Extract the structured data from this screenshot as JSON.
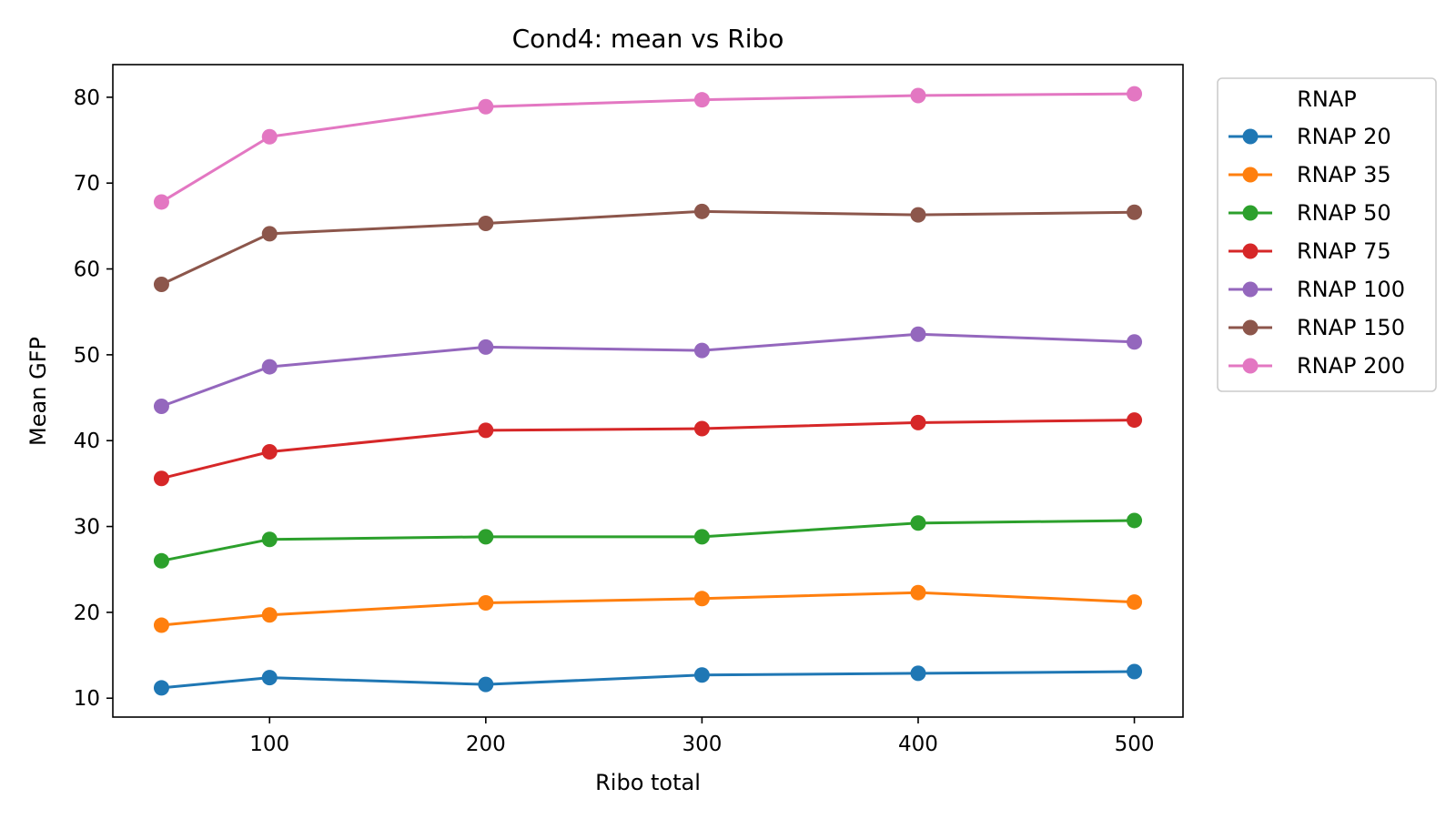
{
  "chart_data": {
    "type": "line",
    "title": "Cond4: mean vs Ribo",
    "xlabel": "Ribo total",
    "ylabel": "Mean GFP",
    "x": [
      50,
      100,
      200,
      300,
      400,
      500
    ],
    "xlim": [
      27.5,
      522.5
    ],
    "ylim": [
      7.8,
      83.8
    ],
    "xticks": [
      100,
      200,
      300,
      400,
      500
    ],
    "yticks": [
      10,
      20,
      30,
      40,
      50,
      60,
      70,
      80
    ],
    "grid": false,
    "legend": {
      "title": "RNAP",
      "placement": "outside-top-right"
    },
    "series": [
      {
        "name": "RNAP 20",
        "color": "#1f77b4",
        "values": [
          11.2,
          12.4,
          11.6,
          12.7,
          12.9,
          13.1
        ]
      },
      {
        "name": "RNAP 35",
        "color": "#ff7f0e",
        "values": [
          18.5,
          19.7,
          21.1,
          21.6,
          22.3,
          21.2
        ]
      },
      {
        "name": "RNAP 50",
        "color": "#2ca02c",
        "values": [
          26.0,
          28.5,
          28.8,
          28.8,
          30.4,
          30.7
        ]
      },
      {
        "name": "RNAP 75",
        "color": "#d62728",
        "values": [
          35.6,
          38.7,
          41.2,
          41.4,
          42.1,
          42.4
        ]
      },
      {
        "name": "RNAP 100",
        "color": "#9467bd",
        "values": [
          44.0,
          48.6,
          50.9,
          50.5,
          52.4,
          51.5
        ]
      },
      {
        "name": "RNAP 150",
        "color": "#8c564b",
        "values": [
          58.2,
          64.1,
          65.3,
          66.7,
          66.3,
          66.6
        ]
      },
      {
        "name": "RNAP 200",
        "color": "#e377c2",
        "values": [
          67.8,
          75.4,
          78.9,
          79.7,
          80.2,
          80.4
        ]
      }
    ]
  }
}
